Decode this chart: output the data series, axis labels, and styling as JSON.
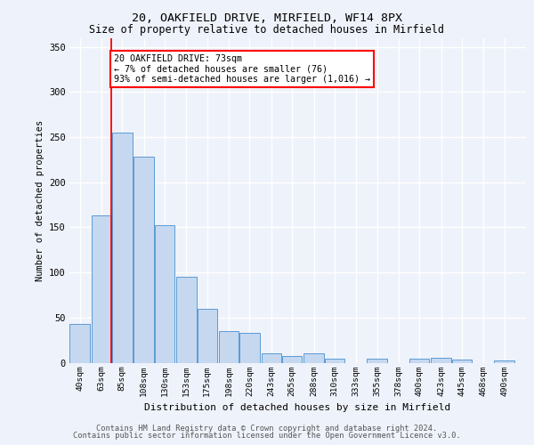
{
  "title1": "20, OAKFIELD DRIVE, MIRFIELD, WF14 8PX",
  "title2": "Size of property relative to detached houses in Mirfield",
  "xlabel": "Distribution of detached houses by size in Mirfield",
  "ylabel": "Number of detached properties",
  "footer1": "Contains HM Land Registry data © Crown copyright and database right 2024.",
  "footer2": "Contains public sector information licensed under the Open Government Licence v3.0.",
  "annotation_line1": "20 OAKFIELD DRIVE: 73sqm",
  "annotation_line2": "← 7% of detached houses are smaller (76)",
  "annotation_line3": "93% of semi-detached houses are larger (1,016) →",
  "bar_color": "#c5d8f0",
  "bar_edge_color": "#5b9bd5",
  "red_line_x": 73,
  "categories": [
    "40sqm",
    "63sqm",
    "85sqm",
    "108sqm",
    "130sqm",
    "153sqm",
    "175sqm",
    "198sqm",
    "220sqm",
    "243sqm",
    "265sqm",
    "288sqm",
    "310sqm",
    "333sqm",
    "355sqm",
    "378sqm",
    "400sqm",
    "423sqm",
    "445sqm",
    "468sqm",
    "490sqm"
  ],
  "bin_edges": [
    40,
    63,
    85,
    108,
    130,
    153,
    175,
    198,
    220,
    243,
    265,
    288,
    310,
    333,
    355,
    378,
    400,
    423,
    445,
    468,
    490
  ],
  "values": [
    43,
    163,
    255,
    228,
    152,
    95,
    60,
    35,
    33,
    10,
    7,
    10,
    4,
    0,
    4,
    0,
    4,
    5,
    3,
    0,
    2
  ],
  "ylim": [
    0,
    360
  ],
  "yticks": [
    0,
    50,
    100,
    150,
    200,
    250,
    300,
    350
  ],
  "background_color": "#eef2fa",
  "grid_color": "#ffffff"
}
